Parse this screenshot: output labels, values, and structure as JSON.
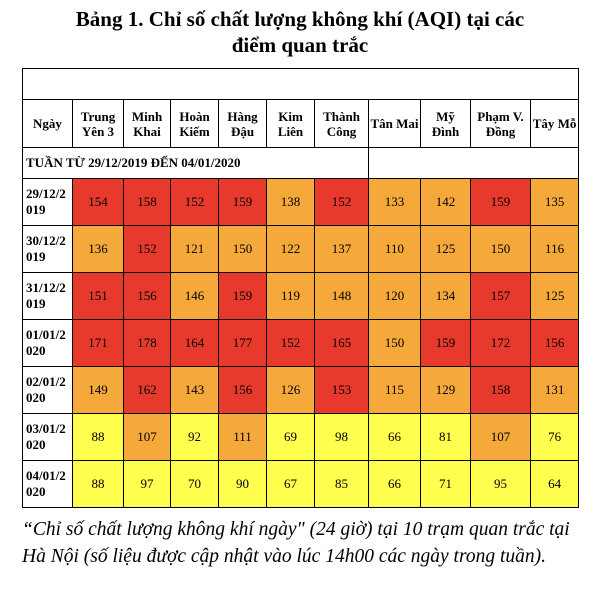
{
  "title": "Bảng 1. Chỉ số chất lượng không khí (AQI) tại các điểm quan trắc",
  "table": {
    "header": [
      "Ngày",
      "Trung Yên 3",
      "Minh Khai",
      "Hoàn Kiếm",
      "Hàng Đậu",
      "Kim Liên",
      "Thành Công",
      "Tân Mai",
      "Mỹ Đình",
      "Phạm V. Đồng",
      "Tây Mỗ"
    ],
    "week": "TUẦN TỪ 29/12/2019 ĐẾN 04/01/2020",
    "rows": [
      {
        "date": "29/12/2019",
        "values": [
          154,
          158,
          152,
          159,
          138,
          152,
          133,
          142,
          159,
          135
        ]
      },
      {
        "date": "30/12/2019",
        "values": [
          136,
          152,
          121,
          150,
          122,
          137,
          110,
          125,
          150,
          116
        ]
      },
      {
        "date": "31/12/2019",
        "values": [
          151,
          156,
          146,
          159,
          119,
          148,
          120,
          134,
          157,
          125
        ]
      },
      {
        "date": "01/01/2020",
        "values": [
          171,
          178,
          164,
          177,
          152,
          165,
          150,
          159,
          172,
          156
        ]
      },
      {
        "date": "02/01/2020",
        "values": [
          149,
          162,
          143,
          156,
          126,
          153,
          115,
          129,
          158,
          131
        ]
      },
      {
        "date": "03/01/2020",
        "values": [
          88,
          107,
          92,
          111,
          69,
          98,
          66,
          81,
          107,
          76
        ]
      },
      {
        "date": "04/01/2020",
        "values": [
          88,
          97,
          70,
          90,
          67,
          85,
          66,
          71,
          95,
          64
        ]
      }
    ]
  },
  "caption": "“Chỉ số chất lượng không khí ngày\" (24 giờ) tại 10 trạm quan trắc tại Hà Nội (số liệu được cập nhật vào lúc 14h00 các ngày trong tuần)."
}
